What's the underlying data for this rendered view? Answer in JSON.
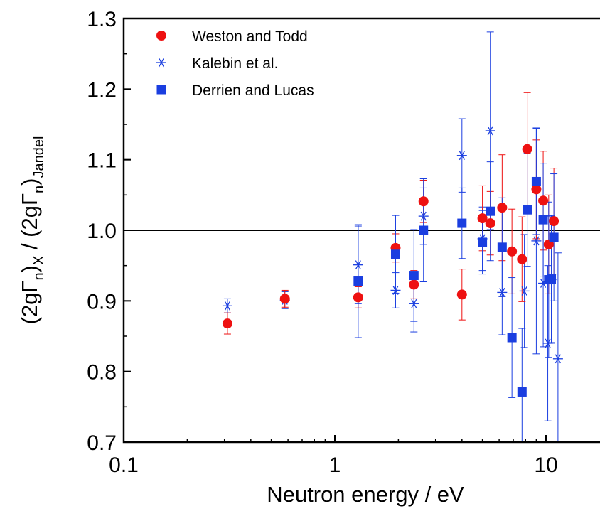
{
  "chart_data": {
    "type": "scatter",
    "xlabel": "Neutron energy / eV",
    "ylabel": {
      "parts": [
        "(2gΓ",
        "n",
        ")",
        "X",
        " / (2gΓ",
        "n",
        ")",
        "Jandel"
      ]
    },
    "xscale": "log",
    "xlim": [
      0.1,
      18
    ],
    "ylim": [
      0.7,
      1.3
    ],
    "x_ticks": [
      0.1,
      1,
      10
    ],
    "x_tick_labels": [
      "0.1",
      "1",
      "10"
    ],
    "y_ticks": [
      0.7,
      0.8,
      0.9,
      1.0,
      1.1,
      1.2,
      1.3
    ],
    "y_tick_labels": [
      "0.7",
      "0.8",
      "0.9",
      "1.0",
      "1.1",
      "1.2",
      "1.3"
    ],
    "reference_line_y": 1.0,
    "legend_position": "top-left",
    "grid": false,
    "series": [
      {
        "name": "Weston and Todd",
        "marker": "circle",
        "color": "#ee1111",
        "points": [
          {
            "x": 0.31,
            "y": 0.868,
            "err": 0.015
          },
          {
            "x": 0.58,
            "y": 0.903,
            "err": 0.012
          },
          {
            "x": 1.29,
            "y": 0.905,
            "err": 0.015
          },
          {
            "x": 1.94,
            "y": 0.975,
            "err": 0.02
          },
          {
            "x": 2.37,
            "y": 0.923,
            "err": 0.02
          },
          {
            "x": 2.63,
            "y": 1.041,
            "err": 0.03
          },
          {
            "x": 4.0,
            "y": 0.909,
            "err": 0.036
          },
          {
            "x": 5.0,
            "y": 1.017,
            "err": 0.046
          },
          {
            "x": 5.45,
            "y": 1.01,
            "err": 0.045
          },
          {
            "x": 6.2,
            "y": 1.032,
            "err": 0.075
          },
          {
            "x": 6.9,
            "y": 0.97,
            "err": 0.06
          },
          {
            "x": 7.7,
            "y": 0.959,
            "err": 0.06
          },
          {
            "x": 8.15,
            "y": 1.115,
            "err": 0.08
          },
          {
            "x": 9.0,
            "y": 1.058,
            "err": 0.07
          },
          {
            "x": 9.7,
            "y": 1.042,
            "err": 0.07
          },
          {
            "x": 10.3,
            "y": 0.98,
            "err": 0.07
          },
          {
            "x": 10.9,
            "y": 1.013,
            "err": 0.075
          }
        ]
      },
      {
        "name": "Kalebin et al.",
        "marker": "asterisk",
        "color": "#1a3ee0",
        "points": [
          {
            "x": 0.31,
            "y": 0.893,
            "err": 0.01
          },
          {
            "x": 0.58,
            "y": 0.901,
            "err": 0.012
          },
          {
            "x": 1.29,
            "y": 0.951,
            "err": 0.055
          },
          {
            "x": 1.94,
            "y": 0.915,
            "err": 0.025
          },
          {
            "x": 2.37,
            "y": 0.896,
            "err": 0.04
          },
          {
            "x": 2.63,
            "y": 1.02,
            "err": 0.04
          },
          {
            "x": 4.0,
            "y": 1.106,
            "err": 0.052
          },
          {
            "x": 5.0,
            "y": 0.988,
            "err": 0.045
          },
          {
            "x": 5.45,
            "y": 1.141,
            "err": 0.14
          },
          {
            "x": 6.2,
            "y": 0.912,
            "err": 0.06
          },
          {
            "x": 7.9,
            "y": 0.914,
            "err": 0.08
          },
          {
            "x": 9.0,
            "y": 0.985,
            "err": 0.16
          },
          {
            "x": 9.7,
            "y": 0.925,
            "err": 0.09
          },
          {
            "x": 10.2,
            "y": 0.84,
            "err": 0.11
          },
          {
            "x": 10.6,
            "y": 0.93,
            "err": 0.09
          },
          {
            "x": 11.4,
            "y": 0.818,
            "err": 0.15
          }
        ]
      },
      {
        "name": "Derrien and Lucas",
        "marker": "square",
        "color": "#1a3ee0",
        "points": [
          {
            "x": 1.29,
            "y": 0.928,
            "err": 0.08
          },
          {
            "x": 1.94,
            "y": 0.966,
            "err": 0.055
          },
          {
            "x": 2.37,
            "y": 0.936,
            "err": 0.065
          },
          {
            "x": 2.63,
            "y": 1.0,
            "err": 0.073
          },
          {
            "x": 4.0,
            "y": 1.01,
            "err": 0.05
          },
          {
            "x": 5.0,
            "y": 0.983,
            "err": 0.045
          },
          {
            "x": 5.45,
            "y": 1.027,
            "err": 0.07
          },
          {
            "x": 6.2,
            "y": 0.976,
            "err": 0.07
          },
          {
            "x": 6.9,
            "y": 0.848,
            "err": 0.085
          },
          {
            "x": 7.7,
            "y": 0.771,
            "err": 0.09
          },
          {
            "x": 8.15,
            "y": 1.029,
            "err": 0.08
          },
          {
            "x": 9.0,
            "y": 1.069,
            "err": 0.075
          },
          {
            "x": 9.7,
            "y": 1.015,
            "err": 0.08
          },
          {
            "x": 10.3,
            "y": 0.93,
            "err": 0.11
          },
          {
            "x": 10.6,
            "y": 0.931,
            "err": 0.09
          },
          {
            "x": 10.9,
            "y": 0.99,
            "err": 0.09
          }
        ]
      }
    ]
  }
}
